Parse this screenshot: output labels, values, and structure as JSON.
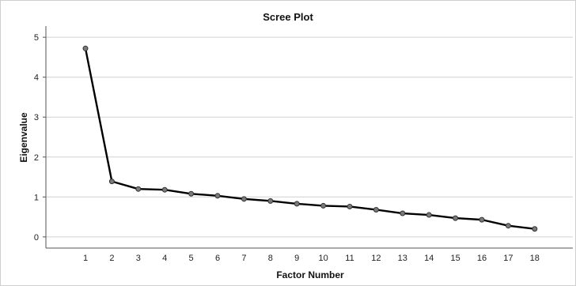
{
  "chart_data": {
    "type": "line",
    "title": "Scree Plot",
    "xlabel": "Factor Number",
    "ylabel": "Eigenvalue",
    "x": [
      1,
      2,
      3,
      4,
      5,
      6,
      7,
      8,
      9,
      10,
      11,
      12,
      13,
      14,
      15,
      16,
      17,
      18
    ],
    "series": [
      {
        "values": [
          4.72,
          1.39,
          1.2,
          1.18,
          1.08,
          1.03,
          0.95,
          0.9,
          0.83,
          0.78,
          0.76,
          0.68,
          0.59,
          0.55,
          0.47,
          0.43,
          0.28,
          0.2
        ]
      }
    ],
    "xticks": [
      1,
      2,
      3,
      4,
      5,
      6,
      7,
      8,
      9,
      10,
      11,
      12,
      13,
      14,
      15,
      16,
      17,
      18
    ],
    "yticks": [
      0,
      1,
      2,
      3,
      4,
      5
    ],
    "ylim": [
      -0.28,
      5.28
    ],
    "grid": true,
    "colors": {
      "line": "#000000",
      "marker": "#7a7a7a",
      "grid": "#d0d0d0",
      "axis": "#555555"
    }
  }
}
